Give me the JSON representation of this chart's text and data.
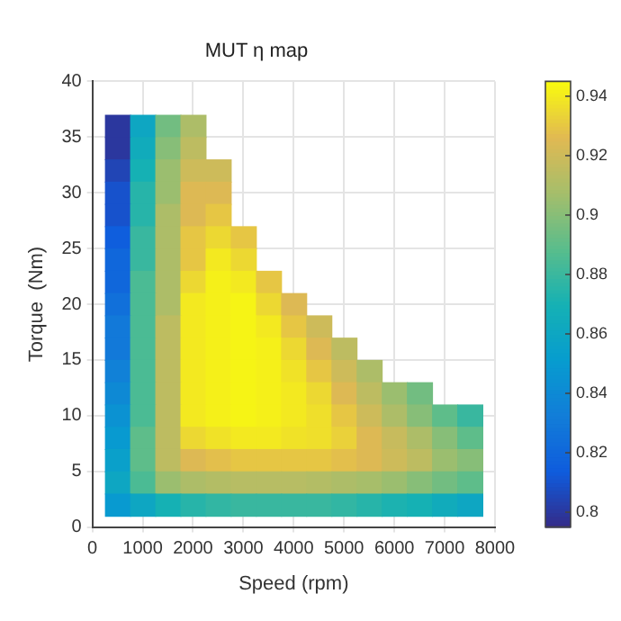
{
  "chart_data": {
    "type": "heatmap",
    "title": "MUT η map",
    "xlabel": "Speed (rpm)",
    "ylabel": "Torque  (Nm)",
    "x": [
      500,
      1000,
      1500,
      2000,
      2500,
      3000,
      3500,
      4000,
      4500,
      5000,
      5500,
      6000,
      6500,
      7000,
      7500
    ],
    "y": [
      36,
      34,
      32,
      30,
      28,
      26,
      24,
      22,
      20,
      18,
      16,
      14,
      12,
      10,
      8,
      6,
      4,
      2
    ],
    "cells": [
      [
        0.8,
        0.86,
        0.895,
        0.91,
        null,
        null,
        null,
        null,
        null,
        null,
        null,
        null,
        null,
        null,
        null
      ],
      [
        0.8,
        0.865,
        0.9,
        0.915,
        null,
        null,
        null,
        null,
        null,
        null,
        null,
        null,
        null,
        null,
        null
      ],
      [
        0.805,
        0.87,
        0.905,
        0.92,
        0.92,
        null,
        null,
        null,
        null,
        null,
        null,
        null,
        null,
        null,
        null
      ],
      [
        0.81,
        0.875,
        0.905,
        0.925,
        0.925,
        null,
        null,
        null,
        null,
        null,
        null,
        null,
        null,
        null,
        null
      ],
      [
        0.81,
        0.875,
        0.91,
        0.925,
        0.93,
        null,
        null,
        null,
        null,
        null,
        null,
        null,
        null,
        null,
        null
      ],
      [
        0.815,
        0.88,
        0.91,
        0.93,
        0.935,
        0.93,
        null,
        null,
        null,
        null,
        null,
        null,
        null,
        null,
        null
      ],
      [
        0.82,
        0.88,
        0.91,
        0.93,
        0.94,
        0.935,
        null,
        null,
        null,
        null,
        null,
        null,
        null,
        null,
        null
      ],
      [
        0.82,
        0.885,
        0.91,
        0.935,
        0.942,
        0.94,
        0.93,
        null,
        null,
        null,
        null,
        null,
        null,
        null,
        null
      ],
      [
        0.825,
        0.885,
        0.91,
        0.94,
        0.942,
        0.943,
        0.935,
        0.925,
        null,
        null,
        null,
        null,
        null,
        null,
        null
      ],
      [
        0.83,
        0.885,
        0.915,
        0.94,
        0.942,
        0.943,
        0.94,
        0.93,
        0.92,
        null,
        null,
        null,
        null,
        null,
        null
      ],
      [
        0.83,
        0.885,
        0.915,
        0.94,
        0.942,
        0.943,
        0.942,
        0.935,
        0.925,
        0.915,
        null,
        null,
        null,
        null,
        null
      ],
      [
        0.835,
        0.885,
        0.915,
        0.94,
        0.942,
        0.943,
        0.942,
        0.938,
        0.93,
        0.92,
        0.91,
        null,
        null,
        null,
        null
      ],
      [
        0.84,
        0.885,
        0.915,
        0.94,
        0.942,
        0.943,
        0.942,
        0.94,
        0.935,
        0.925,
        0.915,
        0.905,
        0.895,
        null,
        null
      ],
      [
        0.845,
        0.885,
        0.915,
        0.94,
        0.942,
        0.943,
        0.942,
        0.94,
        0.937,
        0.93,
        0.92,
        0.91,
        0.9,
        0.89,
        0.88
      ],
      [
        0.85,
        0.89,
        0.915,
        0.935,
        0.938,
        0.94,
        0.94,
        0.938,
        0.937,
        0.933,
        0.925,
        0.918,
        0.91,
        0.9,
        0.89
      ],
      [
        0.855,
        0.89,
        0.915,
        0.925,
        0.928,
        0.93,
        0.93,
        0.93,
        0.93,
        0.928,
        0.925,
        0.92,
        0.915,
        0.905,
        0.9
      ],
      [
        0.86,
        0.885,
        0.905,
        0.91,
        0.912,
        0.913,
        0.913,
        0.913,
        0.912,
        0.91,
        0.908,
        0.905,
        0.9,
        0.895,
        0.89
      ],
      [
        0.85,
        0.86,
        0.87,
        0.875,
        0.878,
        0.88,
        0.88,
        0.88,
        0.88,
        0.878,
        0.875,
        0.872,
        0.87,
        0.865,
        0.86
      ]
    ],
    "clim": [
      0.795,
      0.945
    ],
    "cticks": [
      0.8,
      0.82,
      0.84,
      0.86,
      0.88,
      0.9,
      0.92,
      0.94
    ],
    "xlim": [
      0,
      8000
    ],
    "xticks": [
      0,
      1000,
      2000,
      3000,
      4000,
      5000,
      6000,
      7000,
      8000
    ],
    "ylim": [
      0,
      40
    ],
    "yticks": [
      0,
      5,
      10,
      15,
      20,
      25,
      30,
      35,
      40
    ],
    "grid": true
  }
}
